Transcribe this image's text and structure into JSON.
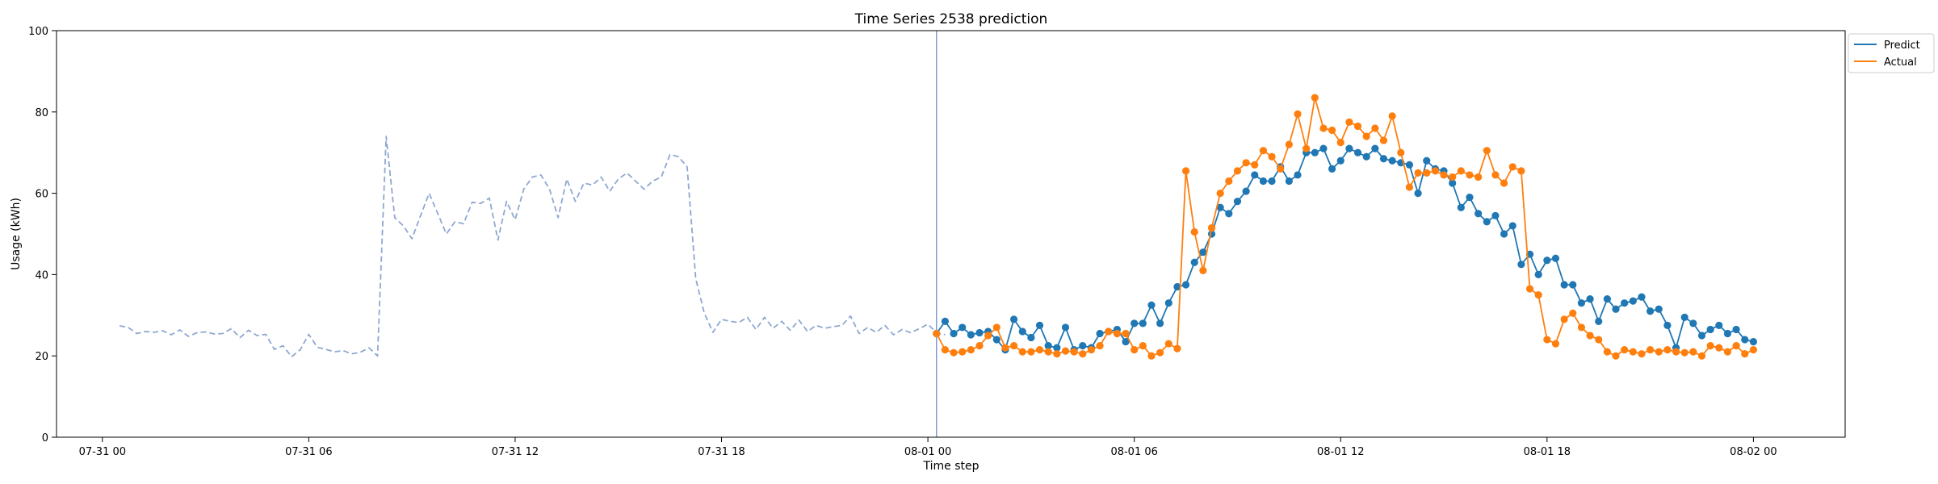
{
  "chart_data": {
    "type": "line",
    "title": "Time Series 2538 prediction",
    "xlabel": "Time step",
    "ylabel": "Usage (kWh)",
    "ylim": [
      0,
      100
    ],
    "xlim": [
      "2024-07-30 22:40",
      "2024-08-02 02:40"
    ],
    "yticks": [
      0,
      20,
      40,
      60,
      80,
      100
    ],
    "xticks": [
      {
        "t": "2024-07-31 00:00",
        "label": "07-31 00"
      },
      {
        "t": "2024-07-31 06:00",
        "label": "07-31 06"
      },
      {
        "t": "2024-07-31 12:00",
        "label": "07-31 12"
      },
      {
        "t": "2024-07-31 18:00",
        "label": "07-31 18"
      },
      {
        "t": "2024-08-01 00:00",
        "label": "08-01 00"
      },
      {
        "t": "2024-08-01 06:00",
        "label": "08-01 06"
      },
      {
        "t": "2024-08-01 12:00",
        "label": "08-01 12"
      },
      {
        "t": "2024-08-01 18:00",
        "label": "08-01 18"
      },
      {
        "t": "2024-08-02 00:00",
        "label": "08-02 00"
      }
    ],
    "grid": false,
    "legend_position": "upper right, outside plot",
    "interval_minutes": 15,
    "forecast_start": "2024-08-01 00:15",
    "series": [
      {
        "name": "",
        "style": "dashed",
        "color": "#8fa8d0",
        "start": "2024-07-31 00:30",
        "values": [
          27.4,
          27.0,
          25.5,
          26.0,
          25.8,
          26.2,
          25.2,
          26.4,
          24.8,
          25.7,
          25.9,
          25.4,
          25.5,
          26.7,
          24.5,
          26.3,
          25.0,
          25.3,
          21.6,
          22.5,
          19.8,
          21.5,
          25.3,
          22.1,
          21.6,
          21.0,
          21.3,
          20.5,
          20.9,
          22.0,
          20.0,
          74.0,
          54.0,
          52.0,
          48.8,
          54.5,
          60.0,
          55.0,
          50.0,
          53.0,
          52.5,
          57.8,
          57.5,
          58.8,
          48.5,
          58.0,
          53.5,
          61.0,
          64.0,
          64.5,
          61.0,
          54.0,
          63.5,
          58.0,
          62.5,
          62.0,
          64.0,
          60.5,
          63.5,
          65.0,
          63.0,
          61.0,
          63.0,
          64.0,
          69.5,
          69.0,
          66.5,
          39.0,
          30.5,
          25.8,
          29.0,
          28.5,
          28.2,
          29.5,
          26.5,
          29.5,
          26.8,
          28.5,
          26.3,
          28.8,
          26.0,
          27.5,
          26.8,
          27.2,
          27.5,
          29.8,
          25.5,
          27.0,
          25.8,
          27.5,
          25.2,
          26.5,
          25.7,
          26.7,
          27.8,
          25.7,
          25.2
        ]
      },
      {
        "name": "Predict",
        "style": "solid-markers",
        "color": "#1f77b4",
        "start": "2024-08-01 00:15",
        "values": [
          25.5,
          28.5,
          25.5,
          27.0,
          25.2,
          25.7,
          26.0,
          24.0,
          21.5,
          29.0,
          26.0,
          24.5,
          27.5,
          22.5,
          22.0,
          27.0,
          21.5,
          22.5,
          22.0,
          25.5,
          26.0,
          26.5,
          23.5,
          28.0,
          28.0,
          32.5,
          28.0,
          33.0,
          37.0,
          37.5,
          43.0,
          45.5,
          50.0,
          56.5,
          55.0,
          58.0,
          60.5,
          64.5,
          63.0,
          63.0,
          66.5,
          63.0,
          64.5,
          70.0,
          70.0,
          71.0,
          66.0,
          68.0,
          71.0,
          70.0,
          69.0,
          71.0,
          68.5,
          68.0,
          67.5,
          67.0,
          60.0,
          68.0,
          66.0,
          65.5,
          62.5,
          56.5,
          59.0,
          55.0,
          53.0,
          54.5,
          50.0,
          52.0,
          42.5,
          45.0,
          40.0,
          43.5,
          44.0,
          37.5,
          37.5,
          33.0,
          34.0,
          28.5,
          34.0,
          31.5,
          33.0,
          33.5,
          34.5,
          31.0,
          31.5,
          27.5,
          22.0,
          29.5,
          28.0,
          25.0,
          26.5,
          27.5,
          25.5,
          26.5,
          24.0,
          23.5
        ]
      },
      {
        "name": "Actual",
        "style": "solid-markers",
        "color": "#ff7f0e",
        "start": "2024-08-01 00:15",
        "values": [
          25.5,
          21.5,
          20.8,
          21.0,
          21.5,
          22.5,
          25.0,
          27.0,
          22.0,
          22.5,
          21.0,
          21.0,
          21.5,
          21.0,
          20.5,
          21.2,
          21.0,
          20.5,
          21.5,
          22.5,
          26.0,
          25.5,
          25.5,
          21.5,
          22.5,
          20.0,
          20.8,
          23.0,
          21.8,
          65.5,
          50.5,
          41.0,
          51.5,
          60.0,
          63.0,
          65.5,
          67.5,
          67.0,
          70.5,
          69.0,
          66.0,
          72.0,
          79.5,
          71.0,
          83.5,
          76.0,
          75.5,
          72.5,
          77.5,
          76.5,
          74.0,
          76.0,
          73.0,
          79.0,
          70.0,
          61.5,
          65.0,
          65.0,
          65.5,
          64.5,
          64.0,
          65.5,
          64.5,
          64.0,
          70.5,
          64.5,
          62.5,
          66.5,
          65.5,
          36.5,
          35.0,
          24.0,
          23.0,
          29.0,
          30.5,
          27.0,
          25.0,
          24.0,
          21.0,
          20.0,
          21.5,
          21.0,
          20.5,
          21.5,
          21.0,
          21.5,
          21.0,
          20.8,
          21.0,
          20.0,
          22.5,
          22.0,
          21.0,
          22.5,
          20.5,
          21.5
        ]
      }
    ]
  }
}
